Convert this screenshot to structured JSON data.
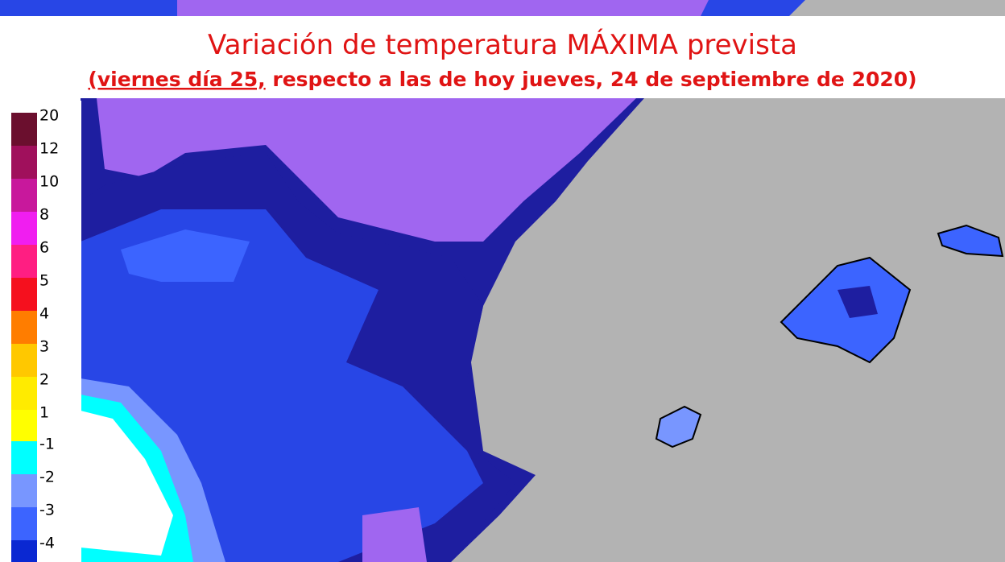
{
  "header": {
    "title": "Variación de temperatura MÁXIMA prevista",
    "subtitle_underlined": "(viernes día 25,",
    "subtitle_rest": " respecto a las de hoy jueves, 24 de septiembre de 2020)"
  },
  "legend": {
    "warm": [
      {
        "label": 20,
        "color": "#6b0f2e"
      },
      {
        "label": 12,
        "color": "#a0105c"
      },
      {
        "label": 10,
        "color": "#c8189c"
      },
      {
        "label": 8,
        "color": "#f01ef0"
      },
      {
        "label": 6,
        "color": "#ff1e82"
      },
      {
        "label": 5,
        "color": "#f5101e"
      },
      {
        "label": 4,
        "color": "#ff7d00"
      },
      {
        "label": 3,
        "color": "#ffc800"
      },
      {
        "label": 2,
        "color": "#ffeb00"
      },
      {
        "label": 1,
        "color": "#ffff00"
      }
    ],
    "cold": [
      {
        "label": -1,
        "color": "#00ffff"
      },
      {
        "label": -2,
        "color": "#7896ff"
      },
      {
        "label": -3,
        "color": "#3c64ff"
      },
      {
        "label": -4,
        "color": "#0a28d2"
      }
    ]
  }
}
